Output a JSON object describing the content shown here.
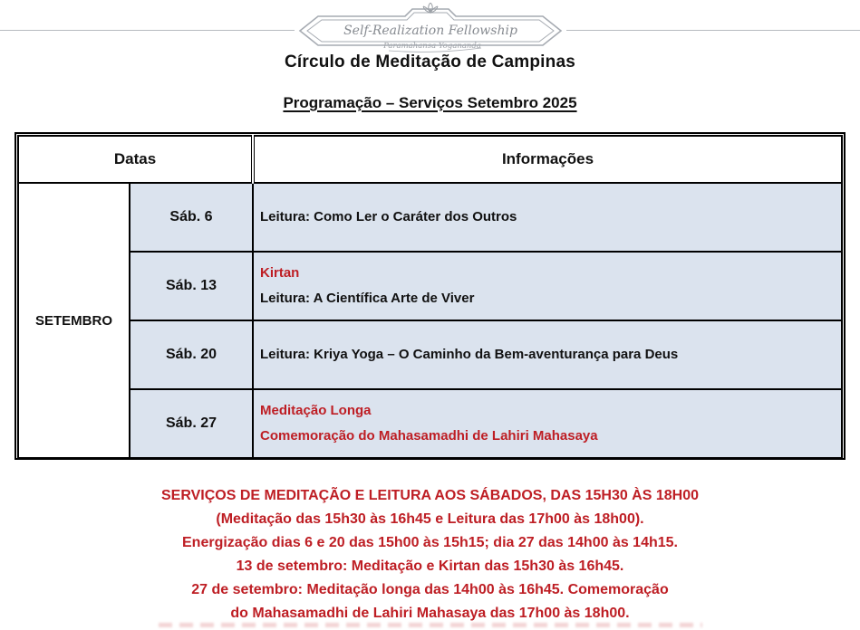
{
  "logo": {
    "org_name": "Self-Realization Fellowship",
    "signature": "Paramahansa Yogananda"
  },
  "header": {
    "title": "Círculo de Meditação de Campinas",
    "subtitle": "Programação – Serviços Setembro 2025"
  },
  "table": {
    "col_datas": "Datas",
    "col_info": "Informações",
    "month": "SETEMBRO",
    "rows": [
      {
        "day": "Sáb. 6",
        "lines": [
          {
            "text": "Leitura: Como Ler o Caráter dos Outros",
            "color": "black"
          }
        ]
      },
      {
        "day": "Sáb. 13",
        "lines": [
          {
            "text": "Kirtan",
            "color": "red"
          },
          {
            "text": "Leitura: A Científica Arte de Viver",
            "color": "black"
          }
        ]
      },
      {
        "day": "Sáb. 20",
        "lines": [
          {
            "text": "Leitura: Kriya Yoga – O Caminho da Bem-aventurança para Deus",
            "color": "black"
          }
        ]
      },
      {
        "day": "Sáb. 27",
        "lines": [
          {
            "text": "Meditação Longa",
            "color": "red"
          },
          {
            "text": "Comemoração do Mahasamadhi de Lahiri Mahasaya",
            "color": "red"
          }
        ]
      }
    ]
  },
  "notes": {
    "lines": [
      "SERVIÇOS DE MEDITAÇÃO E LEITURA AOS SÁBADOS, DAS 15H30 ÀS 18H00",
      "(Meditação das 15h30 às 16h45 e Leitura das 17h00 às 18h00).",
      "Energização dias 6 e 20 das 15h00 às 15h15; dia 27 das 14h00 às 14h15.",
      "13 de setembro: Meditação e Kirtan das 15h30 às 16h45.",
      "27 de setembro: Meditação longa das 14h00 às 16h45. Comemoração",
      "do Mahasamadhi de Lahiri Mahasaya  das 17h00 às 18h00."
    ]
  },
  "colors": {
    "cell_bg": "#dbe3ee",
    "accent_red": "#be1e24",
    "logo_gray": "#9aa0a7"
  }
}
